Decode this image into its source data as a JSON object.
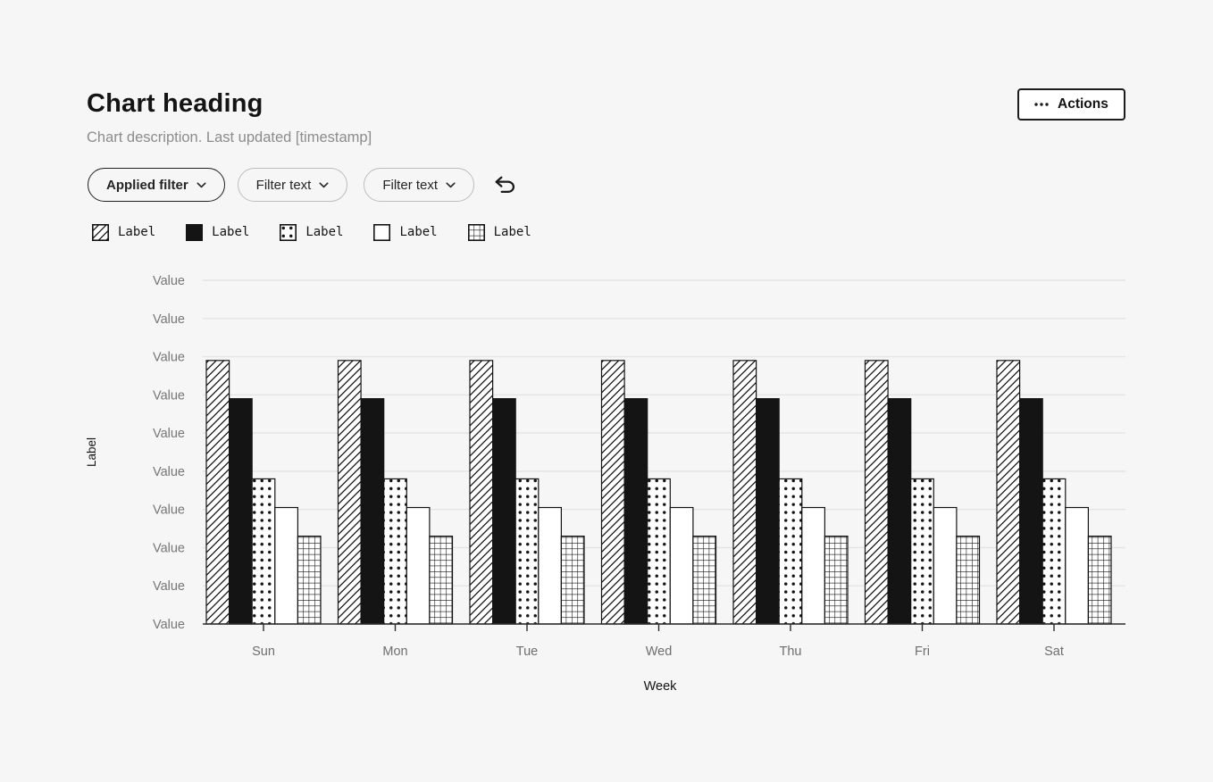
{
  "header": {
    "title": "Chart heading",
    "description": "Chart description. Last updated [timestamp]",
    "actions": {
      "label": "Actions",
      "icon": "horizontal-ellipsis"
    }
  },
  "filter_bar": {
    "filters": [
      {
        "label": "Applied filter",
        "applied": true,
        "icon": "chevron-down"
      },
      {
        "label": "Filter text",
        "applied": false,
        "icon": "chevron-down"
      },
      {
        "label": "Filter text",
        "applied": false,
        "icon": "chevron-down"
      }
    ],
    "undo_icon": "undo-arrow"
  },
  "legend": {
    "items": [
      {
        "label": "Label",
        "pattern": "diagonal-hatch"
      },
      {
        "label": "Label",
        "pattern": "solid-black"
      },
      {
        "label": "Label",
        "pattern": "dots"
      },
      {
        "label": "Label",
        "pattern": "plain-white"
      },
      {
        "label": "Label",
        "pattern": "grid"
      }
    ]
  },
  "chart_data": {
    "type": "bar",
    "title": "Chart heading",
    "categories": [
      "Sun",
      "Mon",
      "Tue",
      "Wed",
      "Thu",
      "Fri",
      "Sat"
    ],
    "series": [
      {
        "name": "Label",
        "pattern": "diagonal-hatch",
        "values": [
          6.9,
          6.9,
          6.9,
          6.9,
          6.9,
          6.9,
          6.9
        ]
      },
      {
        "name": "Label",
        "pattern": "solid-black",
        "values": [
          5.9,
          5.9,
          5.9,
          5.9,
          5.9,
          5.9,
          5.9
        ]
      },
      {
        "name": "Label",
        "pattern": "dots",
        "values": [
          3.8,
          3.8,
          3.8,
          3.8,
          3.8,
          3.8,
          3.8
        ]
      },
      {
        "name": "Label",
        "pattern": "plain-white",
        "values": [
          3.05,
          3.05,
          3.05,
          3.05,
          3.05,
          3.05,
          3.05
        ]
      },
      {
        "name": "Label",
        "pattern": "grid",
        "values": [
          2.3,
          2.3,
          2.3,
          2.3,
          2.3,
          2.3,
          2.3
        ]
      }
    ],
    "xlabel": "Week",
    "ylabel": "Label",
    "y_tick_label": "Value",
    "y_tick_count": 10,
    "ylim": [
      0,
      9
    ],
    "grid": true,
    "legend_position": "top-left-above-chart"
  },
  "colors": {
    "page_bg": "#f6f6f6",
    "text_primary": "#141414",
    "text_secondary": "#8c8c8c",
    "axis_tick_text": "#767676",
    "category_text": "#6e6e6e",
    "gridline": "#e4e4e3",
    "axis_line": "#2b2b2b",
    "bar_stroke": "#141414",
    "bar_fill": "#ffffff",
    "pill_border_applied": "#1f1f1f",
    "pill_border": "#bdbdbd"
  }
}
